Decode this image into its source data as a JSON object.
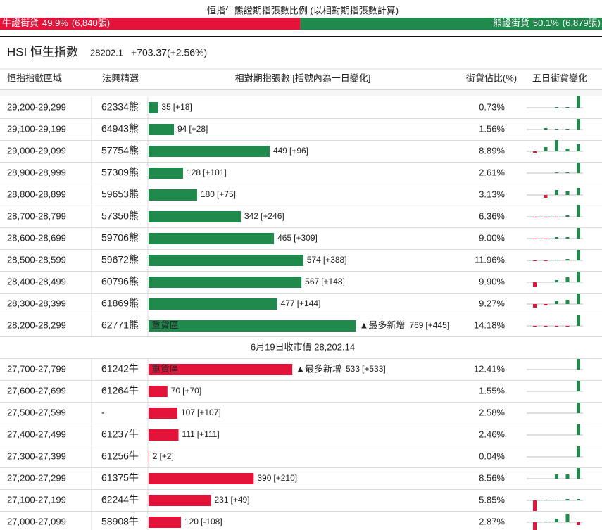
{
  "title": "恒指牛熊證期指張數比例 (以相對期指張數計算)",
  "ratio": {
    "bull": {
      "label": "牛證街貨",
      "share": 49.9,
      "share_label": "49.9%",
      "count": "(6,840張)"
    },
    "bear": {
      "label": "熊證街貨",
      "share": 50.1,
      "share_label": "50.1%",
      "count": "(6,879張)"
    }
  },
  "index": {
    "name": "HSI 恒生指數",
    "price": "28202.1",
    "change": "+703.37(+2.56%)"
  },
  "table": {
    "headers": [
      "恒指指數區域",
      "法興精選",
      "相對期指張數 [括號內為一日變化]",
      "街貨佔比(%)",
      "五日街貨變化"
    ],
    "bear_rows": [
      {
        "range": "29,200-29,299",
        "warrant": "62334熊",
        "count": 35,
        "change": "[+18]",
        "share": "0.73%",
        "spark": [
          0,
          0,
          1,
          1,
          17
        ]
      },
      {
        "range": "29,100-29,199",
        "warrant": "64943熊",
        "count": 94,
        "change": "[+28]",
        "share": "1.56%",
        "spark": [
          0,
          2,
          1,
          1,
          15
        ]
      },
      {
        "range": "29,000-29,099",
        "warrant": "57754熊",
        "count": 449,
        "change": "[+96]",
        "share": "8.89%",
        "spark": [
          -2,
          6,
          16,
          4,
          10
        ]
      },
      {
        "range": "28,900-28,999",
        "warrant": "57309熊",
        "count": 128,
        "change": "[+101]",
        "share": "2.61%",
        "spark": [
          0,
          0,
          1,
          1,
          15
        ]
      },
      {
        "range": "28,800-28,899",
        "warrant": "59653熊",
        "count": 180,
        "change": "[+75]",
        "share": "3.13%",
        "spark": [
          0,
          -4,
          7,
          5,
          10
        ]
      },
      {
        "range": "28,700-28,799",
        "warrant": "57350熊",
        "count": 342,
        "change": "[+246]",
        "share": "6.36%",
        "spark": [
          -1,
          -1,
          -1,
          2,
          17
        ]
      },
      {
        "range": "28,600-28,699",
        "warrant": "59706熊",
        "count": 465,
        "change": "[+309]",
        "share": "9.00%",
        "spark": [
          -1,
          -1,
          2,
          2,
          15
        ]
      },
      {
        "range": "28,500-28,599",
        "warrant": "59672熊",
        "count": 574,
        "change": "[+388]",
        "share": "11.96%",
        "spark": [
          -1,
          -1,
          1,
          2,
          15
        ]
      },
      {
        "range": "28,400-28,499",
        "warrant": "60796熊",
        "count": 567,
        "change": "[+148]",
        "share": "9.90%",
        "spark": [
          -7,
          0,
          3,
          7,
          15
        ]
      },
      {
        "range": "28,300-28,399",
        "warrant": "61869熊",
        "count": 477,
        "change": "[+144]",
        "share": "9.27%",
        "spark": [
          -5,
          -2,
          4,
          6,
          15
        ]
      },
      {
        "range": "28,200-28,299",
        "warrant": "62771熊",
        "tag": "重貨區",
        "note": "▲最多新增",
        "count": 769,
        "change": "[+445]",
        "share": "14.18%",
        "spark": [
          -1,
          -1,
          -1,
          -1,
          15
        ]
      }
    ],
    "divider": "6月19日收市價 28,202.14",
    "bull_rows": [
      {
        "range": "27,700-27,799",
        "warrant": "61242牛",
        "tag": "重貨區",
        "note": "▲最多新增",
        "count": 533,
        "change": "[+533]",
        "share": "12.41%",
        "spark": [
          0,
          0,
          0,
          0,
          15
        ]
      },
      {
        "range": "27,600-27,699",
        "warrant": "61264牛",
        "count": 70,
        "change": "[+70]",
        "share": "1.55%",
        "spark": [
          0,
          0,
          0,
          0,
          15
        ]
      },
      {
        "range": "27,500-27,599",
        "warrant": "-",
        "count": 107,
        "change": "[+107]",
        "share": "2.58%",
        "spark": [
          0,
          0,
          0,
          0,
          15
        ]
      },
      {
        "range": "27,400-27,499",
        "warrant": "61237牛",
        "count": 111,
        "change": "[+111]",
        "share": "2.46%",
        "spark": [
          0,
          0,
          0,
          0,
          15
        ]
      },
      {
        "range": "27,300-27,399",
        "warrant": "61256牛",
        "count": 2,
        "change": "[+2]",
        "share": "0.04%",
        "spark": [
          0,
          0,
          0,
          0,
          15
        ]
      },
      {
        "range": "27,200-27,299",
        "warrant": "61375牛",
        "count": 390,
        "change": "[+210]",
        "share": "8.56%",
        "spark": [
          0,
          0,
          6,
          6,
          15
        ]
      },
      {
        "range": "27,100-27,199",
        "warrant": "62244牛",
        "count": 231,
        "change": "[+49]",
        "share": "5.85%",
        "spark": [
          -15,
          1,
          1,
          2,
          2
        ]
      },
      {
        "range": "27,000-27,099",
        "warrant": "58908牛",
        "count": 120,
        "change": "[-108]",
        "share": "2.87%",
        "spark": [
          -15,
          1,
          5,
          12,
          -4
        ]
      }
    ]
  }
}
